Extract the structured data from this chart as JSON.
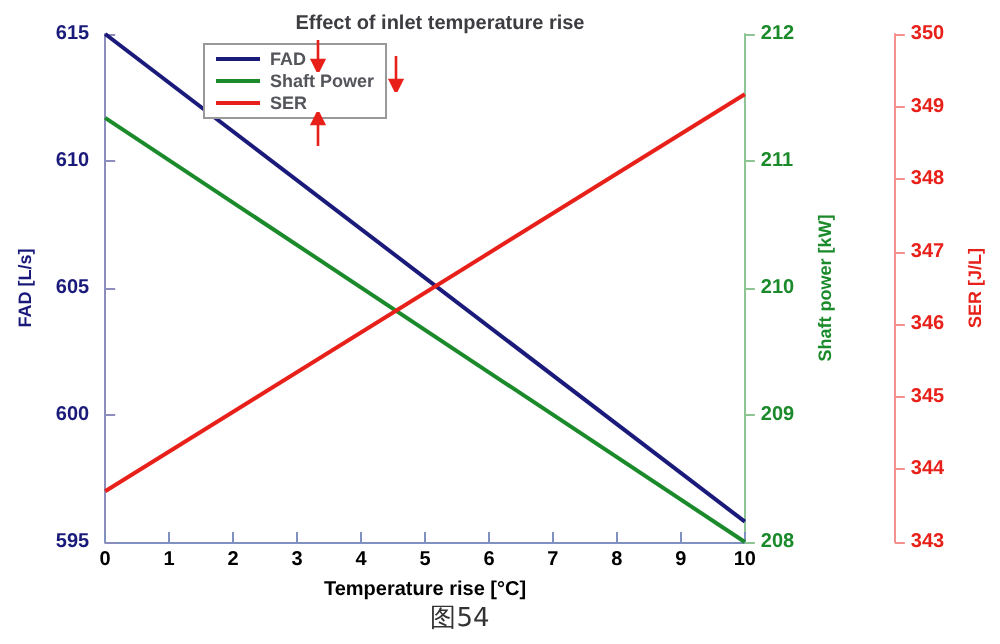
{
  "chart_data": {
    "type": "line",
    "title": "Effect of inlet temperature rise",
    "xlabel": "Temperature rise [°C]",
    "ylabel": "FAD [L/s]",
    "y2label": "Shaft power [kW]",
    "y3label": "SER [J/L]",
    "x": [
      0,
      10
    ],
    "series": [
      {
        "name": "FAD",
        "color": "#1a1a7a",
        "values": [
          615,
          595.8
        ]
      },
      {
        "name": "Shaft Power",
        "color": "#1a8a2a",
        "values": [
          211.34,
          208.0
        ],
        "axis": "y2"
      },
      {
        "name": "SER",
        "color": "#e8201a",
        "values": [
          343.7,
          349.17
        ],
        "axis": "y3"
      }
    ],
    "xlim": [
      0,
      10
    ],
    "xticks": [
      0,
      1,
      2,
      3,
      4,
      5,
      6,
      7,
      8,
      9,
      10
    ],
    "ylim": [
      595,
      615
    ],
    "yticks": [
      595,
      600,
      605,
      610,
      615
    ],
    "y2lim": [
      208,
      212
    ],
    "y2ticks": [
      208,
      209,
      210,
      211,
      212
    ],
    "y3lim": [
      343,
      350
    ],
    "y3ticks": [
      343,
      344,
      345,
      346,
      347,
      348,
      349,
      350
    ],
    "grid": false,
    "legend": "top left",
    "marker": "none",
    "line_style": "solid",
    "annotations": [
      "图54"
    ]
  }
}
